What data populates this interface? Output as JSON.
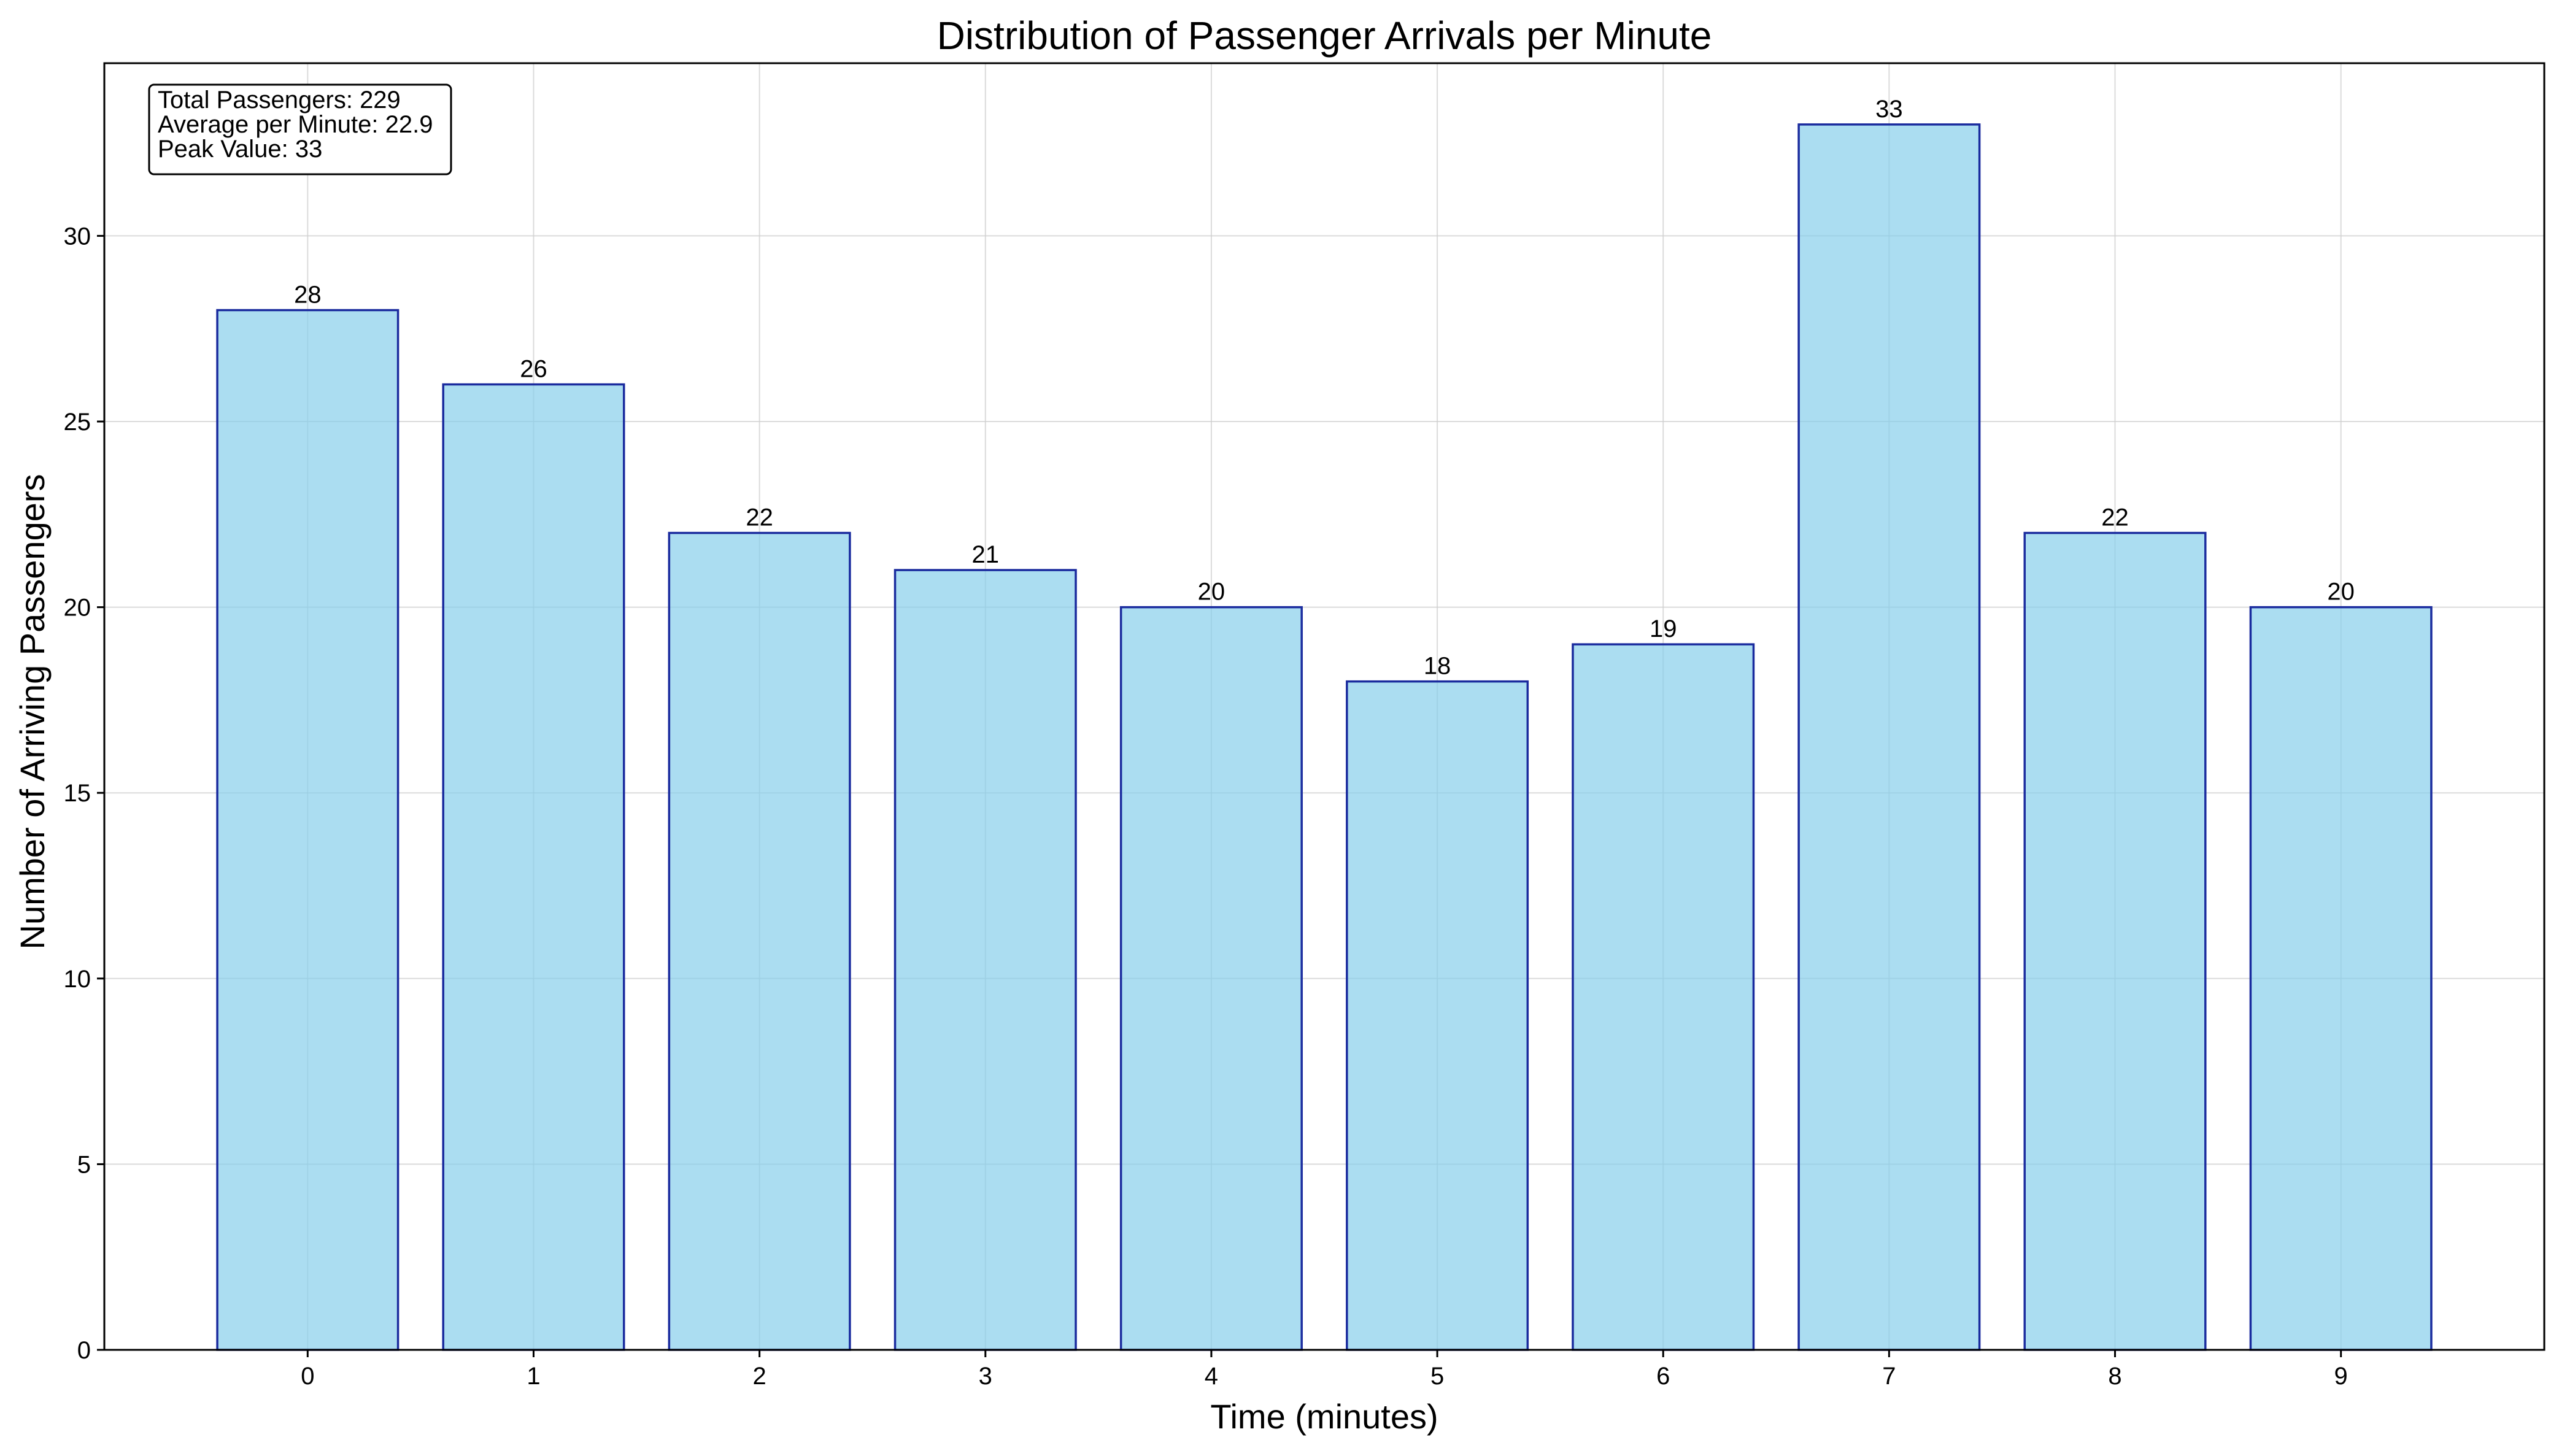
{
  "chart_data": {
    "type": "bar",
    "title": "Distribution of Passenger Arrivals per Minute",
    "xlabel": "Time (minutes)",
    "ylabel": "Number of Arriving Passengers",
    "categories": [
      "0",
      "1",
      "2",
      "3",
      "4",
      "5",
      "6",
      "7",
      "8",
      "9"
    ],
    "values": [
      28,
      26,
      22,
      21,
      20,
      18,
      19,
      33,
      22,
      20
    ],
    "ylim": [
      0,
      34.65
    ],
    "yticks": [
      "0",
      "5",
      "10",
      "15",
      "20",
      "25",
      "30"
    ],
    "grid": true,
    "colors": {
      "bar_fill": "#87ceeb",
      "bar_edge": "#1a2b9e"
    },
    "stats_box": {
      "lines": [
        "Total Passengers: 229",
        "Average per Minute: 22.9",
        "Peak Value: 33"
      ],
      "placement": "top-left"
    }
  }
}
